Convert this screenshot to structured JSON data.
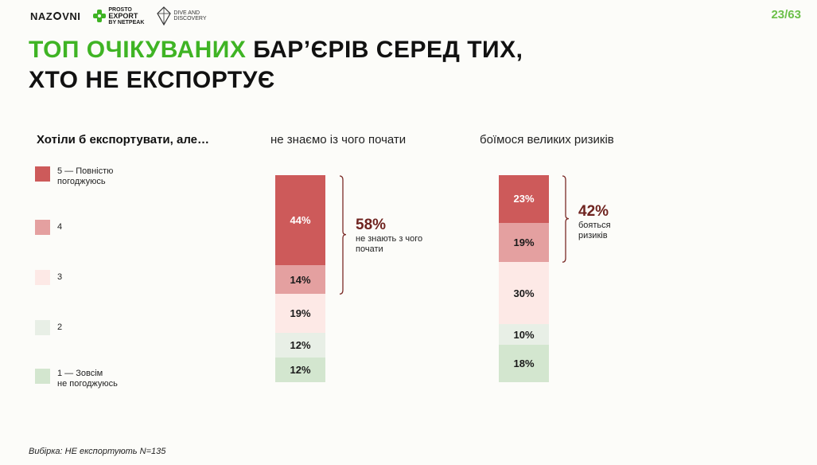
{
  "header": {
    "logo_nazovni": [
      "NAZ",
      "VNI"
    ],
    "logo_prosto": {
      "line1": "PROSTO",
      "line2": "EXPORT",
      "line3": "BY NETPEAK"
    },
    "logo_dive": {
      "line1": "DIVE AND",
      "line2": "DISCOVERY"
    },
    "page_number": "23/63"
  },
  "title": {
    "accent": "ТОП ОЧІКУВАНИХ",
    "rest_line1": " БАР’ЄРІВ СЕРЕД ТИХ,",
    "line2": "ХТО НЕ ЕКСПОРТУЄ"
  },
  "question": "Хотіли б експортувати, але…",
  "legend": [
    {
      "label_line1": "5 — Повністю",
      "label_line2": "погоджуюсь",
      "color": "#cd5a5a"
    },
    {
      "label_line1": "4",
      "label_line2": "",
      "color": "#e4a0a0"
    },
    {
      "label_line1": "3",
      "label_line2": "",
      "color": "#fde9e6"
    },
    {
      "label_line1": "2",
      "label_line2": "",
      "color": "#e8efe6"
    },
    {
      "label_line1": "1 — Зовсім",
      "label_line2": "не погоджуюсь",
      "color": "#d3e6cf"
    }
  ],
  "chart_data": {
    "type": "bar",
    "stacked": true,
    "normalized": true,
    "categories": [
      "не знаємо із чого почати",
      "боїмося великих ризиків"
    ],
    "series": [
      {
        "name": "5 — Повністю погоджуюсь",
        "values": [
          44,
          23
        ],
        "labels": [
          "44%",
          "23%"
        ],
        "color": "#cd5a5a"
      },
      {
        "name": "4",
        "values": [
          14,
          19
        ],
        "labels": [
          "14%",
          "19%"
        ],
        "color": "#e4a0a0"
      },
      {
        "name": "3",
        "values": [
          19,
          30
        ],
        "labels": [
          "19%",
          "30%"
        ],
        "color": "#fde9e6"
      },
      {
        "name": "2",
        "values": [
          12,
          10
        ],
        "labels": [
          "12%",
          "10%"
        ],
        "color": "#e8efe6"
      },
      {
        "name": "1 — Зовсім не погоджуюсь",
        "values": [
          12,
          18
        ],
        "labels": [
          "12%",
          "18%"
        ],
        "color": "#d3e6cf"
      }
    ],
    "callouts": [
      {
        "value": "58%",
        "text_line1": "не знають з чого",
        "text_line2": "почати"
      },
      {
        "value": "42%",
        "text_line1": "бояться",
        "text_line2": "ризиків"
      }
    ]
  },
  "footnote": "Вибірка: НЕ експортують N=135"
}
